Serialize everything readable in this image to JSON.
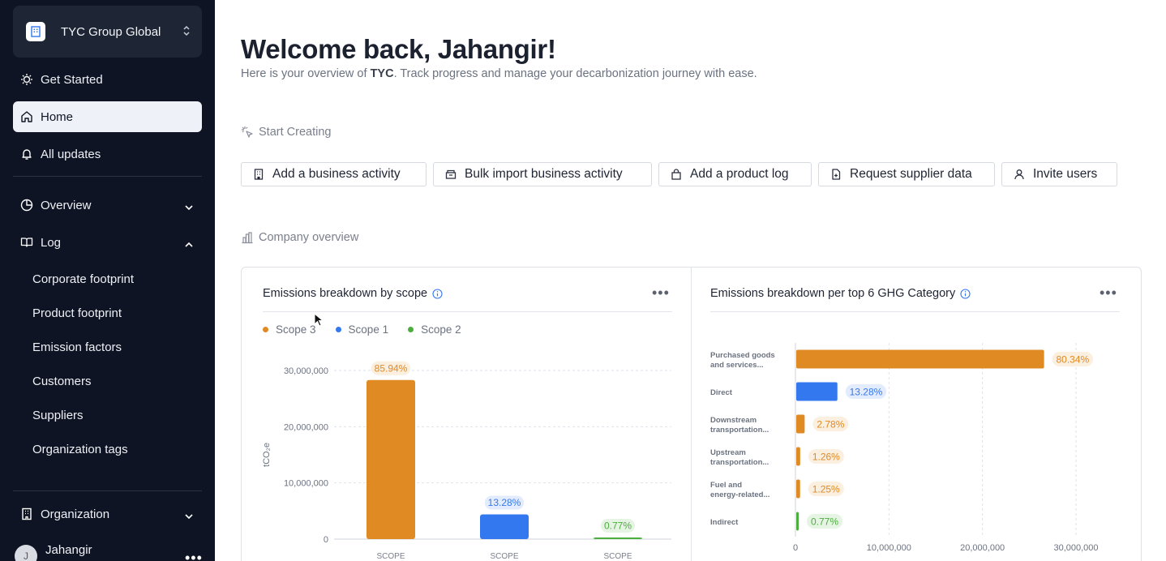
{
  "sidebar": {
    "org_name": "TYC Group Global",
    "top_items": [
      {
        "label": "Get Started",
        "icon": "lightbulb-icon"
      },
      {
        "label": "Home",
        "icon": "home-icon",
        "active": true
      },
      {
        "label": "All updates",
        "icon": "bell-icon"
      }
    ],
    "overview_label": "Overview",
    "log_label": "Log",
    "log_items": [
      "Corporate footprint",
      "Product footprint",
      "Emission factors",
      "Customers",
      "Suppliers",
      "Organization tags"
    ],
    "organization_label": "Organization",
    "user": {
      "name": "Jahangir",
      "initial": "J"
    }
  },
  "main": {
    "title": "Welcome back, Jahangir!",
    "subtitle_pre": "Here is your overview of ",
    "subtitle_company": "TYC",
    "subtitle_post": ". Track progress and manage your decarbonization journey with ease.",
    "start_creating_label": "Start Creating",
    "actions": [
      "Add a business activity",
      "Bulk import business activity",
      "Add a product log",
      "Request supplier data",
      "Invite users"
    ],
    "company_overview_label": "Company overview"
  },
  "colors": {
    "scope3": "#e08a24",
    "scope1": "#3478f0",
    "scope2": "#4cae3d"
  },
  "chart_data": [
    {
      "type": "bar",
      "title": "Emissions breakdown by scope",
      "legend": [
        "Scope 3",
        "Scope 1",
        "Scope 2"
      ],
      "categories": [
        "SCOPE",
        "SCOPE",
        "SCOPE"
      ],
      "values": [
        28300000,
        4400000,
        230000
      ],
      "labels": [
        "85.94%",
        "13.28%",
        "0.77%"
      ],
      "series_colors": [
        "#e08a24",
        "#3478f0",
        "#4cae3d"
      ],
      "ylabel": "tCO₂e",
      "yticks": [
        "0",
        "10,000,000",
        "20,000,000",
        "30,000,000"
      ],
      "ylim": [
        0,
        30000000
      ],
      "grid": true
    },
    {
      "type": "bar",
      "orientation": "horizontal",
      "title": "Emissions breakdown per top 6 GHG Category",
      "categories": [
        [
          "Purchased goods",
          "and services..."
        ],
        [
          "Direct"
        ],
        [
          "Downstream",
          "transportation..."
        ],
        [
          "Upstream",
          "transportation..."
        ],
        [
          "Fuel and",
          "energy-related..."
        ],
        [
          "Indirect"
        ]
      ],
      "values": [
        26500000,
        4400000,
        900000,
        420000,
        410000,
        230000
      ],
      "labels": [
        "80.34%",
        "13.28%",
        "2.78%",
        "1.26%",
        "1.25%",
        "0.77%"
      ],
      "series_colors": [
        "#e08a24",
        "#3478f0",
        "#e08a24",
        "#e08a24",
        "#e08a24",
        "#4cae3d"
      ],
      "xticks": [
        "0",
        "10,000,000",
        "20,000,000",
        "30,000,000"
      ],
      "xlim": [
        0,
        30000000
      ],
      "grid": true
    }
  ]
}
